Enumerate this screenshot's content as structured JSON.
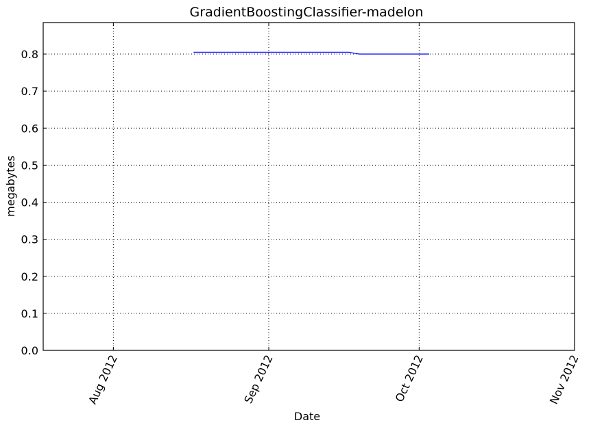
{
  "chart_data": {
    "type": "line",
    "title": "GradientBoostingClassifier-madelon",
    "xlabel": "Date",
    "ylabel": "megabytes",
    "x_ticks": [
      "Aug 2012",
      "Sep 2012",
      "Oct 2012",
      "Nov 2012"
    ],
    "x_tick_dates": [
      "2012-08-01",
      "2012-09-01",
      "2012-10-01",
      "2012-11-01"
    ],
    "xlim": [
      "2012-07-18",
      "2012-11-01"
    ],
    "y_ticks": [
      "0.0",
      "0.1",
      "0.2",
      "0.3",
      "0.4",
      "0.5",
      "0.6",
      "0.7",
      "0.8"
    ],
    "ylim": [
      0,
      0.885
    ],
    "grid": true,
    "x_tick_rotation": "rotated",
    "series": [
      {
        "color": "#0000ff",
        "x": [
          "2012-08-17",
          "2012-09-17",
          "2012-09-19",
          "2012-10-03"
        ],
        "y": [
          0.805,
          0.805,
          0.8,
          0.8
        ]
      }
    ]
  }
}
